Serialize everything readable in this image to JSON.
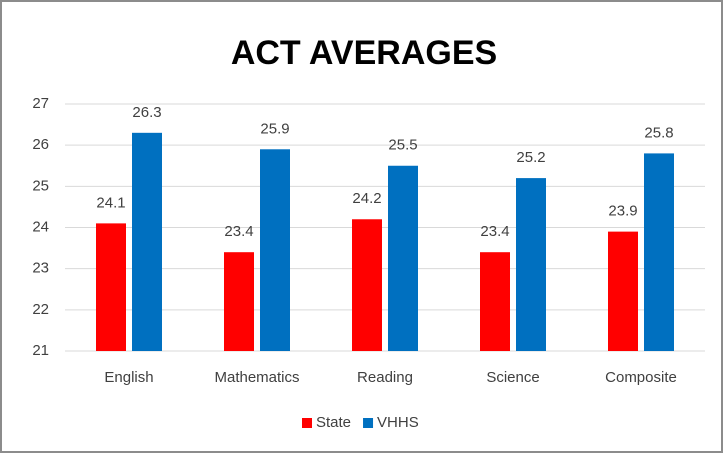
{
  "chart_data": {
    "type": "bar",
    "title": "ACT AVERAGES",
    "categories": [
      "English",
      "Mathematics",
      "Reading",
      "Science",
      "Composite"
    ],
    "series": [
      {
        "name": "State",
        "color": "#ff0000",
        "values": [
          24.1,
          23.4,
          24.2,
          23.4,
          23.9
        ]
      },
      {
        "name": "VHHS",
        "color": "#0070c0",
        "values": [
          26.3,
          25.9,
          25.5,
          25.2,
          25.8
        ]
      }
    ],
    "ylim": [
      21,
      27
    ],
    "yticks": [
      21,
      22,
      23,
      24,
      25,
      26,
      27
    ],
    "grid": true,
    "legend": "bottom"
  }
}
